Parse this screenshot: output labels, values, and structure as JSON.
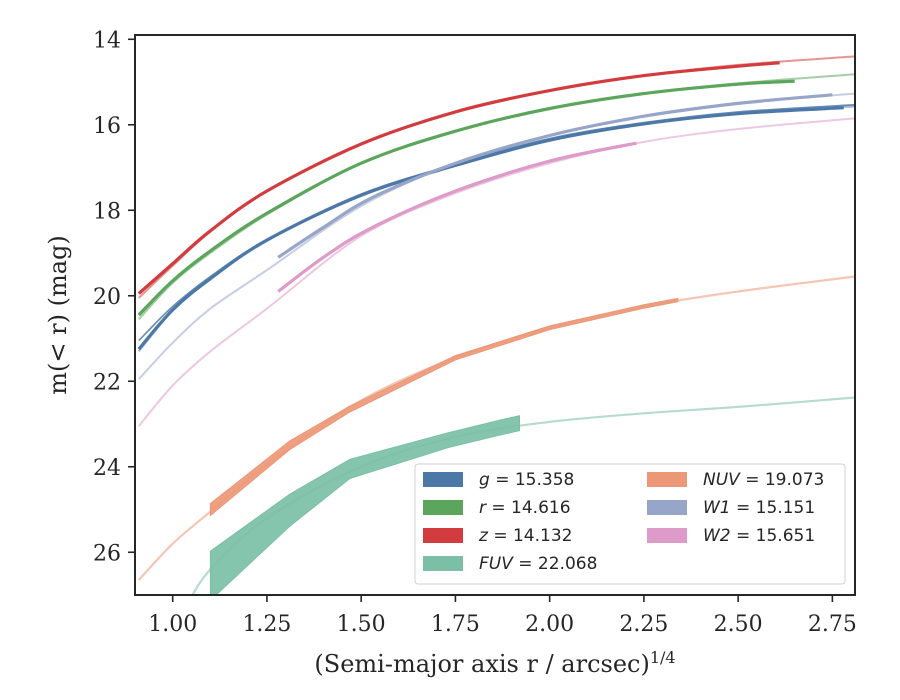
{
  "chart_data": {
    "type": "line",
    "xlabel": "(Semi-major axis r / arcsec)",
    "xlabel_exponent": "1/4",
    "ylabel": "m(< r) (mag)",
    "xlim": [
      0.9,
      2.81
    ],
    "ylim": [
      27.0,
      13.9
    ],
    "y_inverted": true,
    "xticks": [
      "1.00",
      "1.25",
      "1.50",
      "1.75",
      "2.00",
      "2.25",
      "2.50",
      "2.75"
    ],
    "xtick_values": [
      1.0,
      1.25,
      1.5,
      1.75,
      2.0,
      2.25,
      2.5,
      2.75
    ],
    "yticks": [
      "14",
      "16",
      "18",
      "20",
      "22",
      "24",
      "26"
    ],
    "ytick_values": [
      14,
      16,
      18,
      20,
      22,
      24,
      26
    ],
    "grid": false,
    "legend_position": "lower-right",
    "legend": [
      {
        "band": "g",
        "value": "15.358",
        "color": "#4c78a8"
      },
      {
        "band": "r",
        "value": "14.616",
        "color": "#5ca55c"
      },
      {
        "band": "z",
        "value": "14.132",
        "color": "#d33c3e"
      },
      {
        "band": "FUV",
        "value": "22.068",
        "color": "#7bbfa6"
      },
      {
        "band": "NUV",
        "value": "19.073",
        "color": "#ec9877"
      },
      {
        "band": "W1",
        "value": "15.151",
        "color": "#97a6c8"
      },
      {
        "band": "W2",
        "value": "15.651",
        "color": "#de9ac8"
      }
    ],
    "series": [
      {
        "name": "g",
        "color": "#4c78a8",
        "model": [
          [
            0.91,
            21.3
          ],
          [
            1.0,
            20.35
          ],
          [
            1.1,
            19.6
          ],
          [
            1.25,
            18.7
          ],
          [
            1.5,
            17.65
          ],
          [
            1.75,
            16.95
          ],
          [
            2.0,
            16.35
          ],
          [
            2.25,
            15.98
          ],
          [
            2.5,
            15.73
          ],
          [
            2.81,
            15.57
          ]
        ],
        "model2": [
          [
            0.91,
            21.05
          ],
          [
            1.0,
            20.25
          ],
          [
            1.1,
            19.55
          ],
          [
            1.25,
            18.68
          ],
          [
            1.5,
            17.62
          ],
          [
            1.75,
            16.92
          ],
          [
            2.0,
            16.32
          ],
          [
            2.25,
            15.95
          ],
          [
            2.5,
            15.7
          ],
          [
            2.81,
            15.53
          ]
        ],
        "data": [
          [
            0.91,
            21.25
          ],
          [
            1.0,
            20.33
          ],
          [
            1.1,
            19.6
          ],
          [
            1.25,
            18.7
          ],
          [
            1.5,
            17.65
          ],
          [
            1.75,
            16.95
          ],
          [
            2.0,
            16.36
          ],
          [
            2.25,
            15.98
          ],
          [
            2.5,
            15.74
          ],
          [
            2.78,
            15.6
          ]
        ]
      },
      {
        "name": "r",
        "color": "#5ca55c",
        "model": [
          [
            0.91,
            20.55
          ],
          [
            1.0,
            19.7
          ],
          [
            1.1,
            19.0
          ],
          [
            1.25,
            18.1
          ],
          [
            1.5,
            16.9
          ],
          [
            1.75,
            16.15
          ],
          [
            2.0,
            15.62
          ],
          [
            2.25,
            15.27
          ],
          [
            2.5,
            15.03
          ],
          [
            2.81,
            14.82
          ]
        ],
        "data": [
          [
            0.91,
            20.45
          ],
          [
            1.0,
            19.65
          ],
          [
            1.1,
            18.95
          ],
          [
            1.25,
            18.07
          ],
          [
            1.5,
            16.9
          ],
          [
            1.75,
            16.15
          ],
          [
            2.0,
            15.62
          ],
          [
            2.25,
            15.27
          ],
          [
            2.5,
            15.05
          ],
          [
            2.65,
            14.98
          ]
        ]
      },
      {
        "name": "z",
        "color": "#d33c3e",
        "model": [
          [
            0.91,
            20.05
          ],
          [
            1.0,
            19.3
          ],
          [
            1.1,
            18.5
          ],
          [
            1.25,
            17.55
          ],
          [
            1.5,
            16.45
          ],
          [
            1.75,
            15.7
          ],
          [
            2.0,
            15.2
          ],
          [
            2.25,
            14.85
          ],
          [
            2.5,
            14.6
          ],
          [
            2.81,
            14.4
          ]
        ],
        "data": [
          [
            0.91,
            19.95
          ],
          [
            1.0,
            19.25
          ],
          [
            1.1,
            18.48
          ],
          [
            1.25,
            17.55
          ],
          [
            1.5,
            16.45
          ],
          [
            1.75,
            15.7
          ],
          [
            2.0,
            15.2
          ],
          [
            2.25,
            14.85
          ],
          [
            2.5,
            14.63
          ],
          [
            2.61,
            14.55
          ]
        ]
      },
      {
        "name": "W1",
        "color": "#97a6c8",
        "model": [
          [
            0.91,
            21.95
          ],
          [
            1.0,
            21.1
          ],
          [
            1.1,
            20.3
          ],
          [
            1.25,
            19.4
          ],
          [
            1.5,
            17.9
          ],
          [
            1.75,
            16.9
          ],
          [
            2.0,
            16.25
          ],
          [
            2.25,
            15.8
          ],
          [
            2.5,
            15.5
          ],
          [
            2.81,
            15.27
          ]
        ],
        "data": [
          [
            1.28,
            19.1
          ],
          [
            1.4,
            18.4
          ],
          [
            1.53,
            17.7
          ],
          [
            1.75,
            16.9
          ],
          [
            2.0,
            16.25
          ],
          [
            2.25,
            15.8
          ],
          [
            2.5,
            15.5
          ],
          [
            2.75,
            15.3
          ]
        ]
      },
      {
        "name": "W2",
        "color": "#de9ac8",
        "model": [
          [
            0.91,
            23.05
          ],
          [
            1.0,
            22.1
          ],
          [
            1.1,
            21.3
          ],
          [
            1.25,
            20.3
          ],
          [
            1.5,
            18.6
          ],
          [
            1.75,
            17.6
          ],
          [
            2.0,
            16.9
          ],
          [
            2.25,
            16.4
          ],
          [
            2.5,
            16.1
          ],
          [
            2.81,
            15.85
          ]
        ],
        "data": [
          [
            1.28,
            19.9
          ],
          [
            1.4,
            19.1
          ],
          [
            1.53,
            18.4
          ],
          [
            1.75,
            17.55
          ],
          [
            2.0,
            16.85
          ],
          [
            2.23,
            16.43
          ]
        ]
      },
      {
        "name": "NUV",
        "color": "#ec9877",
        "model": [
          [
            0.91,
            26.65
          ],
          [
            1.0,
            25.8
          ],
          [
            1.1,
            25.05
          ],
          [
            1.25,
            23.95
          ],
          [
            1.5,
            22.45
          ],
          [
            1.75,
            21.45
          ],
          [
            2.0,
            20.75
          ],
          [
            2.25,
            20.25
          ],
          [
            2.5,
            19.9
          ],
          [
            2.81,
            19.55
          ]
        ],
        "data": [
          [
            1.1,
            25.0
          ],
          [
            1.31,
            23.5
          ],
          [
            1.47,
            22.65
          ],
          [
            1.75,
            21.45
          ],
          [
            2.0,
            20.75
          ],
          [
            2.25,
            20.25
          ],
          [
            2.34,
            20.1
          ]
        ],
        "band_width": [
          0.28,
          0.2,
          0.14,
          0.1,
          0.09,
          0.08,
          0.08
        ]
      },
      {
        "name": "FUV",
        "color": "#7bbfa6",
        "model": [
          [
            1.04,
            27.2
          ],
          [
            1.1,
            26.4
          ],
          [
            1.25,
            25.2
          ],
          [
            1.5,
            24.0
          ],
          [
            1.75,
            23.3
          ],
          [
            2.0,
            22.95
          ],
          [
            2.25,
            22.75
          ],
          [
            2.5,
            22.6
          ],
          [
            2.81,
            22.38
          ]
        ],
        "data": [
          [
            1.1,
            26.55
          ],
          [
            1.31,
            25.02
          ],
          [
            1.47,
            24.05
          ],
          [
            1.73,
            23.38
          ],
          [
            1.86,
            23.1
          ],
          [
            1.92,
            22.98
          ]
        ],
        "band_width": [
          1.15,
          0.75,
          0.45,
          0.35,
          0.35,
          0.35
        ]
      }
    ]
  }
}
